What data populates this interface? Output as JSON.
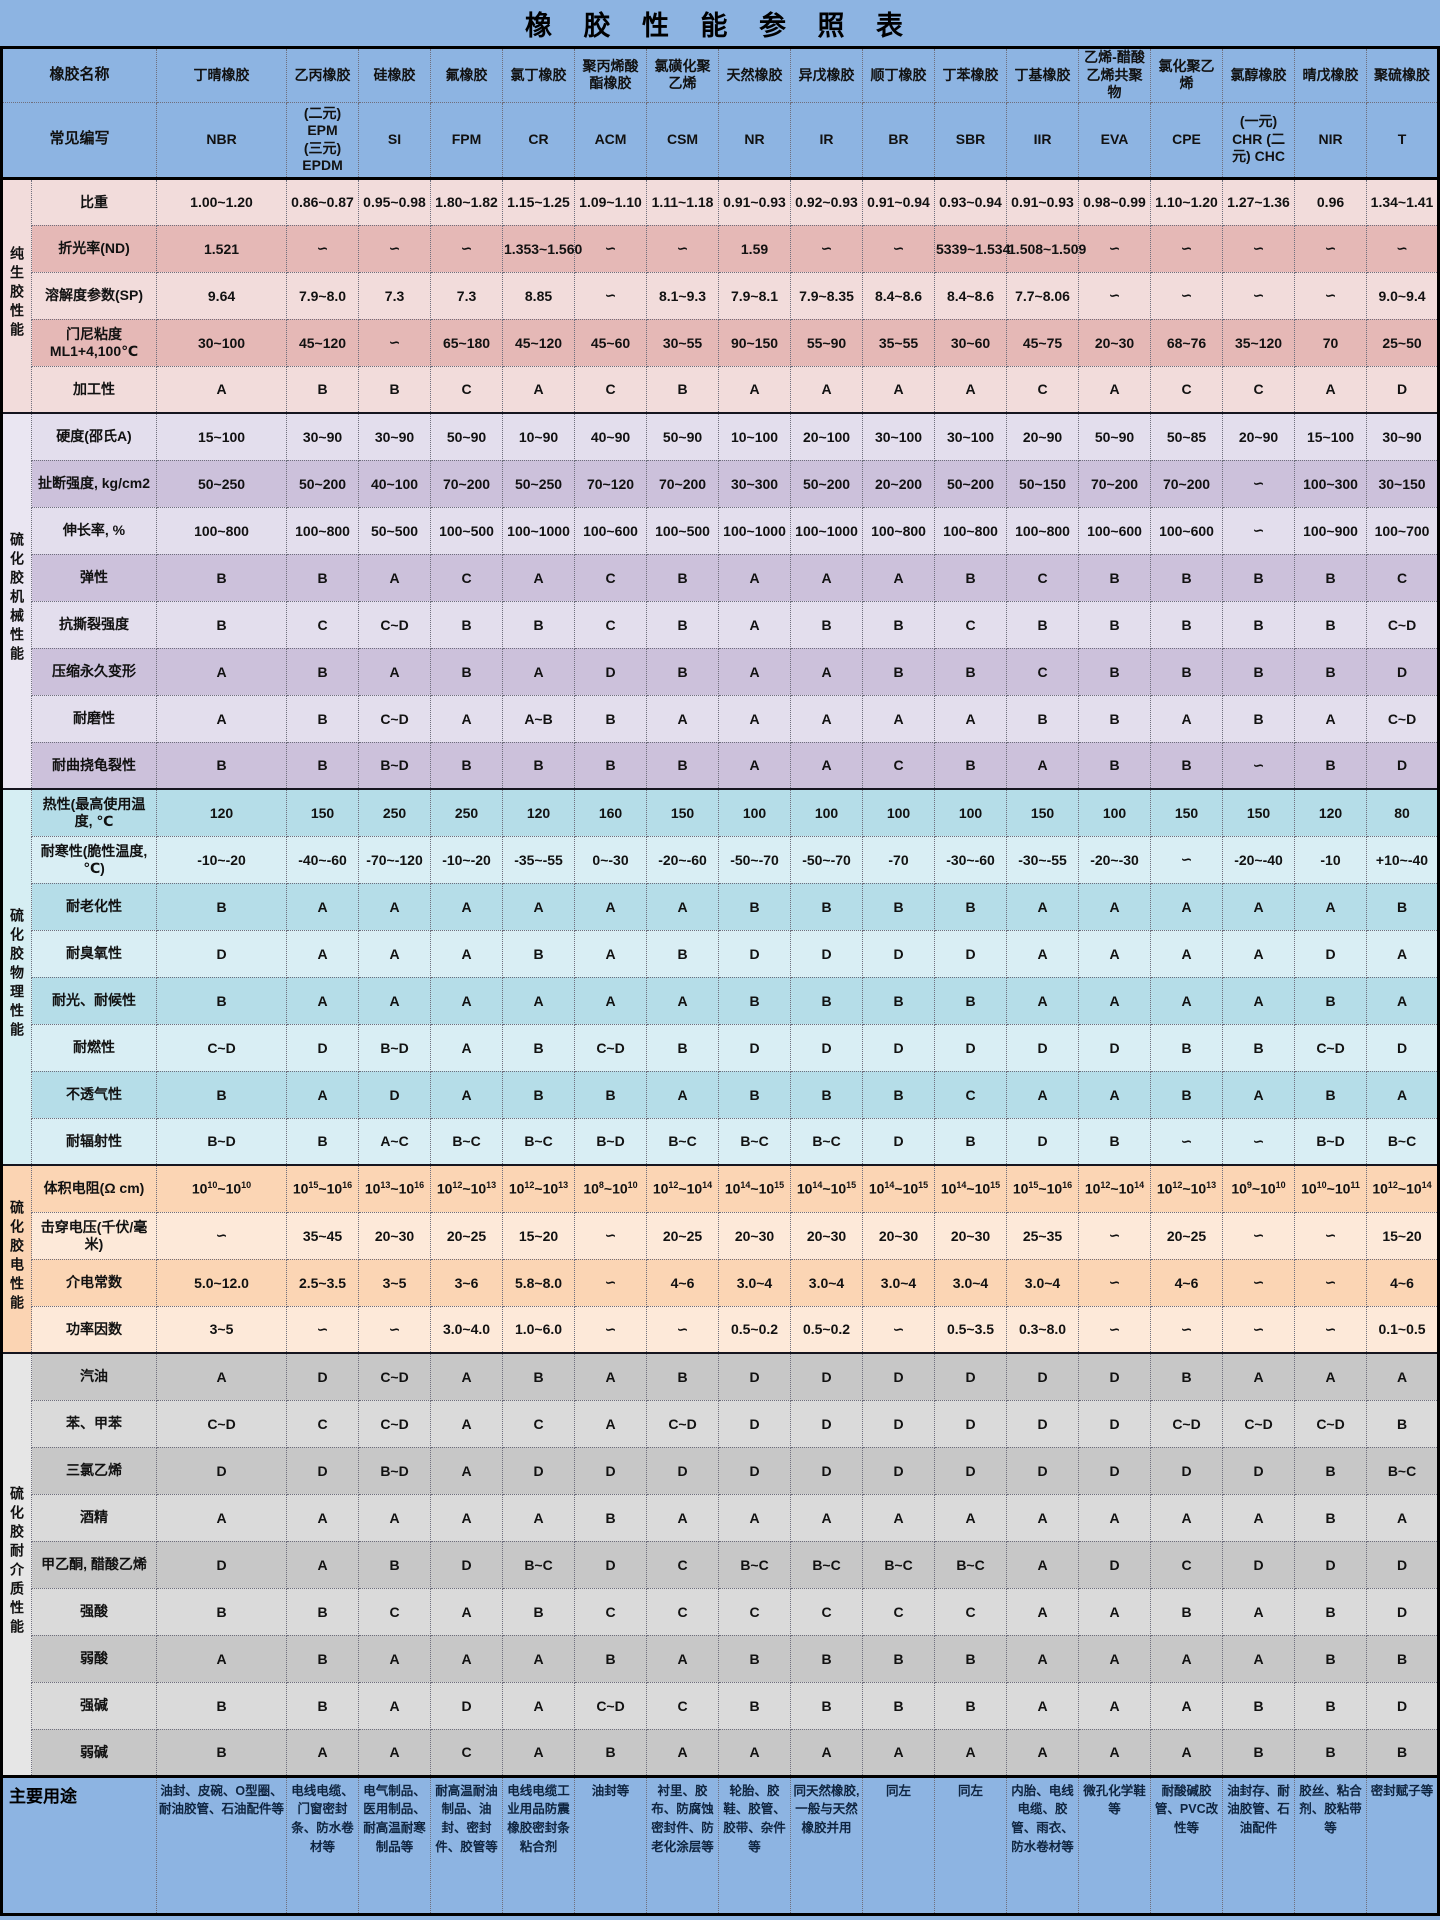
{
  "title": "橡 胶 性 能 参 照 表",
  "colors": {
    "header_blue": "#8DB4E2",
    "pink_light": "#F2DCDB",
    "pink_dark": "#E5B8B6",
    "lavender_light": "#E3DEED",
    "lavender_dark": "#CCC1DB",
    "cyan_light": "#D9EEF4",
    "cyan_dark": "#B5DDE8",
    "peach_light": "#FDE9D9",
    "peach_dark": "#FBD5B4",
    "grey_light": "#DADADA",
    "grey_dark": "#C7C7C7"
  },
  "header": {
    "name_label": "橡胶名称",
    "abbr_label": "常见编写",
    "columns": [
      {
        "name": "丁晴橡胶",
        "abbr": "NBR"
      },
      {
        "name": "乙丙橡胶",
        "abbr": "(二元) EPM\n(三元) EPDM"
      },
      {
        "name": "硅橡胶",
        "abbr": "SI"
      },
      {
        "name": "氟橡胶",
        "abbr": "FPM"
      },
      {
        "name": "氯丁橡胶",
        "abbr": "CR"
      },
      {
        "name": "聚丙烯酸酯橡胶",
        "abbr": "ACM"
      },
      {
        "name": "氯磺化聚乙烯",
        "abbr": "CSM"
      },
      {
        "name": "天然橡胶",
        "abbr": "NR"
      },
      {
        "name": "异戊橡胶",
        "abbr": "IR"
      },
      {
        "name": "顺丁橡胶",
        "abbr": "BR"
      },
      {
        "name": "丁苯橡胶",
        "abbr": "SBR"
      },
      {
        "name": "丁基橡胶",
        "abbr": "IIR"
      },
      {
        "name": "乙烯-醋酸乙烯共聚物",
        "abbr": "EVA"
      },
      {
        "name": "氯化聚乙烯",
        "abbr": "CPE"
      },
      {
        "name": "氯醇橡胶",
        "abbr": "(一元) CHR (二元) CHC"
      },
      {
        "name": "晴戊橡胶",
        "abbr": "NIR"
      },
      {
        "name": "聚硫橡胶",
        "abbr": "T"
      }
    ]
  },
  "sections": [
    {
      "group": "纯生胶性能",
      "style": "pure",
      "alt_start": "light",
      "rows": [
        {
          "label": "比重",
          "values": [
            "1.00~1.20",
            "0.86~0.87",
            "0.95~0.98",
            "1.80~1.82",
            "1.15~1.25",
            "1.09~1.10",
            "1.11~1.18",
            "0.91~0.93",
            "0.92~0.93",
            "0.91~0.94",
            "0.93~0.94",
            "0.91~0.93",
            "0.98~0.99",
            "1.10~1.20",
            "1.27~1.36",
            "0.96",
            "1.34~1.41"
          ]
        },
        {
          "label": "折光率(ND)",
          "values": [
            "1.521",
            "∽",
            "∽",
            "∽",
            "1.353~1.560",
            "∽",
            "∽",
            "1.59",
            "∽",
            "∽",
            "5339~1.534",
            "1.508~1.509",
            "∽",
            "∽",
            "∽",
            "∽",
            "∽"
          ]
        },
        {
          "label": "溶解度参数(SP)",
          "values": [
            "9.64",
            "7.9~8.0",
            "7.3",
            "7.3",
            "8.85",
            "∽",
            "8.1~9.3",
            "7.9~8.1",
            "7.9~8.35",
            "8.4~8.6",
            "8.4~8.6",
            "7.7~8.06",
            "∽",
            "∽",
            "∽",
            "∽",
            "9.0~9.4"
          ]
        },
        {
          "label": "门尼粘度ML1+4,100℃",
          "values": [
            "30~100",
            "45~120",
            "∽",
            "65~180",
            "45~120",
            "45~60",
            "30~55",
            "90~150",
            "55~90",
            "35~55",
            "30~60",
            "45~75",
            "20~30",
            "68~76",
            "35~120",
            "70",
            "25~50"
          ]
        },
        {
          "label": "加工性",
          "values": [
            "A",
            "B",
            "B",
            "C",
            "A",
            "C",
            "B",
            "A",
            "A",
            "A",
            "A",
            "C",
            "A",
            "C",
            "C",
            "A",
            "D"
          ]
        }
      ]
    },
    {
      "group": "硫化胶机械性能",
      "style": "mech",
      "alt_start": "light",
      "rows": [
        {
          "label": "硬度(邵氏A)",
          "values": [
            "15~100",
            "30~90",
            "30~90",
            "50~90",
            "10~90",
            "40~90",
            "50~90",
            "10~100",
            "20~100",
            "30~100",
            "30~100",
            "20~90",
            "50~90",
            "50~85",
            "20~90",
            "15~100",
            "30~90"
          ]
        },
        {
          "label": "扯断强度, kg/cm2",
          "values": [
            "50~250",
            "50~200",
            "40~100",
            "70~200",
            "50~250",
            "70~120",
            "70~200",
            "30~300",
            "50~200",
            "20~200",
            "50~200",
            "50~150",
            "70~200",
            "70~200",
            "∽",
            "100~300",
            "30~150"
          ]
        },
        {
          "label": "伸长率, %",
          "values": [
            "100~800",
            "100~800",
            "50~500",
            "100~500",
            "100~1000",
            "100~600",
            "100~500",
            "100~1000",
            "100~1000",
            "100~800",
            "100~800",
            "100~800",
            "100~600",
            "100~600",
            "∽",
            "100~900",
            "100~700"
          ]
        },
        {
          "label": "弹性",
          "values": [
            "B",
            "B",
            "A",
            "C",
            "A",
            "C",
            "B",
            "A",
            "A",
            "A",
            "B",
            "C",
            "B",
            "B",
            "B",
            "B",
            "C"
          ]
        },
        {
          "label": "抗撕裂强度",
          "values": [
            "B",
            "C",
            "C~D",
            "B",
            "B",
            "C",
            "B",
            "A",
            "B",
            "B",
            "C",
            "B",
            "B",
            "B",
            "B",
            "B",
            "C~D"
          ]
        },
        {
          "label": "压缩永久变形",
          "values": [
            "A",
            "B",
            "A",
            "B",
            "A",
            "D",
            "B",
            "A",
            "A",
            "B",
            "B",
            "C",
            "B",
            "B",
            "B",
            "B",
            "D"
          ]
        },
        {
          "label": "耐磨性",
          "values": [
            "A",
            "B",
            "C~D",
            "A",
            "A~B",
            "B",
            "A",
            "A",
            "A",
            "A",
            "A",
            "B",
            "B",
            "A",
            "B",
            "A",
            "C~D"
          ]
        },
        {
          "label": "耐曲挠龟裂性",
          "values": [
            "B",
            "B",
            "B~D",
            "B",
            "B",
            "B",
            "B",
            "A",
            "A",
            "C",
            "B",
            "A",
            "B",
            "B",
            "∽",
            "B",
            "D"
          ]
        }
      ]
    },
    {
      "group": "硫化胶物理性能",
      "style": "phys",
      "alt_start": "dark",
      "rows": [
        {
          "label": "热性(最高使用温度, ℃",
          "values": [
            "120",
            "150",
            "250",
            "250",
            "120",
            "160",
            "150",
            "100",
            "100",
            "100",
            "100",
            "150",
            "100",
            "150",
            "150",
            "120",
            "80"
          ]
        },
        {
          "label": "耐寒性(脆性温度, ℃)",
          "values": [
            "-10~-20",
            "-40~-60",
            "-70~-120",
            "-10~-20",
            "-35~-55",
            "0~-30",
            "-20~-60",
            "-50~-70",
            "-50~-70",
            "-70",
            "-30~-60",
            "-30~-55",
            "-20~-30",
            "∽",
            "-20~-40",
            "-10",
            "+10~-40"
          ]
        },
        {
          "label": "耐老化性",
          "values": [
            "B",
            "A",
            "A",
            "A",
            "A",
            "A",
            "A",
            "B",
            "B",
            "B",
            "B",
            "A",
            "A",
            "A",
            "A",
            "A",
            "B"
          ]
        },
        {
          "label": "耐臭氧性",
          "values": [
            "D",
            "A",
            "A",
            "A",
            "B",
            "A",
            "B",
            "D",
            "D",
            "D",
            "D",
            "A",
            "A",
            "A",
            "A",
            "D",
            "A"
          ]
        },
        {
          "label": "耐光、耐候性",
          "values": [
            "B",
            "A",
            "A",
            "A",
            "A",
            "A",
            "A",
            "B",
            "B",
            "B",
            "B",
            "A",
            "A",
            "A",
            "A",
            "B",
            "A"
          ]
        },
        {
          "label": "耐燃性",
          "values": [
            "C~D",
            "D",
            "B~D",
            "A",
            "B",
            "C~D",
            "B",
            "D",
            "D",
            "D",
            "D",
            "D",
            "D",
            "B",
            "B",
            "C~D",
            "D"
          ]
        },
        {
          "label": "不透气性",
          "values": [
            "B",
            "A",
            "D",
            "A",
            "B",
            "B",
            "A",
            "B",
            "B",
            "B",
            "C",
            "A",
            "A",
            "B",
            "A",
            "B",
            "A"
          ]
        },
        {
          "label": "耐辐射性",
          "values": [
            "B~D",
            "B",
            "A~C",
            "B~C",
            "B~C",
            "B~D",
            "B~C",
            "B~C",
            "B~C",
            "D",
            "B",
            "D",
            "B",
            "∽",
            "∽",
            "B~D",
            "B~C"
          ]
        }
      ]
    },
    {
      "group": "硫化胶电性能",
      "style": "elec",
      "alt_start": "dark",
      "rows": [
        {
          "label": "体积电阻(Ω cm)",
          "values": [
            "10^10~10^10",
            "10^15~10^16",
            "10^13~10^16",
            "10^12~10^13",
            "10^12~10^13",
            "10^8~10^10",
            "10^12~10^14",
            "10^14~10^15",
            "10^14~10^15",
            "10^14~10^15",
            "10^14~10^15",
            "10^15~10^16",
            "10^12~10^14",
            "10^12~10^13",
            "10^9~10^10",
            "10^10~10^11",
            "10^12~10^14"
          ]
        },
        {
          "label": "击穿电压(千伏/毫米)",
          "values": [
            "∽",
            "35~45",
            "20~30",
            "20~25",
            "15~20",
            "∽",
            "20~25",
            "20~30",
            "20~30",
            "20~30",
            "20~30",
            "25~35",
            "∽",
            "20~25",
            "∽",
            "∽",
            "15~20"
          ]
        },
        {
          "label": "介电常数",
          "values": [
            "5.0~12.0",
            "2.5~3.5",
            "3~5",
            "3~6",
            "5.8~8.0",
            "∽",
            "4~6",
            "3.0~4",
            "3.0~4",
            "3.0~4",
            "3.0~4",
            "3.0~4",
            "∽",
            "4~6",
            "∽",
            "∽",
            "4~6"
          ]
        },
        {
          "label": "功率因数",
          "values": [
            "3~5",
            "∽",
            "∽",
            "3.0~4.0",
            "1.0~6.0",
            "∽",
            "∽",
            "0.5~0.2",
            "0.5~0.2",
            "∽",
            "0.5~3.5",
            "0.3~8.0",
            "∽",
            "∽",
            "∽",
            "∽",
            "0.1~0.5"
          ]
        }
      ]
    },
    {
      "group": "硫化胶耐介质性能",
      "style": "media",
      "alt_start": "dark",
      "rows": [
        {
          "label": "汽油",
          "values": [
            "A",
            "D",
            "C~D",
            "A",
            "B",
            "A",
            "B",
            "D",
            "D",
            "D",
            "D",
            "D",
            "D",
            "B",
            "A",
            "A",
            "A"
          ]
        },
        {
          "label": "苯、甲苯",
          "values": [
            "C~D",
            "C",
            "C~D",
            "A",
            "C",
            "A",
            "C~D",
            "D",
            "D",
            "D",
            "D",
            "D",
            "D",
            "C~D",
            "C~D",
            "C~D",
            "B"
          ]
        },
        {
          "label": "三氯乙烯",
          "values": [
            "D",
            "D",
            "B~D",
            "A",
            "D",
            "D",
            "D",
            "D",
            "D",
            "D",
            "D",
            "D",
            "D",
            "D",
            "D",
            "B",
            "B~C"
          ]
        },
        {
          "label": "酒精",
          "values": [
            "A",
            "A",
            "A",
            "A",
            "A",
            "B",
            "A",
            "A",
            "A",
            "A",
            "A",
            "A",
            "A",
            "A",
            "A",
            "B",
            "A"
          ]
        },
        {
          "label": "甲乙酮, 醋酸乙烯",
          "values": [
            "D",
            "A",
            "B",
            "D",
            "B~C",
            "D",
            "C",
            "B~C",
            "B~C",
            "B~C",
            "B~C",
            "A",
            "D",
            "C",
            "D",
            "D",
            "D"
          ]
        },
        {
          "label": "强酸",
          "values": [
            "B",
            "B",
            "C",
            "A",
            "B",
            "C",
            "C",
            "C",
            "C",
            "C",
            "C",
            "A",
            "A",
            "B",
            "A",
            "B",
            "D"
          ]
        },
        {
          "label": "弱酸",
          "values": [
            "A",
            "B",
            "A",
            "A",
            "A",
            "B",
            "A",
            "B",
            "B",
            "B",
            "B",
            "A",
            "A",
            "A",
            "A",
            "B",
            "B"
          ]
        },
        {
          "label": "强碱",
          "values": [
            "B",
            "B",
            "A",
            "D",
            "A",
            "C~D",
            "C",
            "B",
            "B",
            "B",
            "B",
            "A",
            "A",
            "A",
            "B",
            "B",
            "D"
          ]
        },
        {
          "label": "弱碱",
          "values": [
            "B",
            "A",
            "A",
            "C",
            "A",
            "B",
            "A",
            "A",
            "A",
            "A",
            "A",
            "A",
            "A",
            "A",
            "B",
            "B",
            "B"
          ]
        }
      ]
    }
  ],
  "usage": {
    "label": "主要用途",
    "values": [
      "油封、皮碗、O型圈、耐油胶管、石油配件等",
      "电线电缆、门窗密封条、防水卷材等",
      "电气制品、医用制品、耐高温耐寒制品等",
      "耐高温耐油制品、油封、密封件、胶管等",
      "电线电缆工业用品防震橡胶密封条粘合剂",
      "油封等",
      "衬里、胶布、防腐蚀密封件、防老化涂层等",
      "轮胎、胶鞋、胶管、胶带、杂件等",
      "同天然橡胶, 一般与天然橡胶并用",
      "同左",
      "同左",
      "内胎、电线电缆、胶管、雨衣、防水卷材等",
      "微孔化学鞋等",
      "耐酸碱胶管、PVC改性等",
      "油封存、耐油胶管、石油配件",
      "胶丝、粘合剂、胶粘带等",
      "密封赋子等"
    ]
  }
}
